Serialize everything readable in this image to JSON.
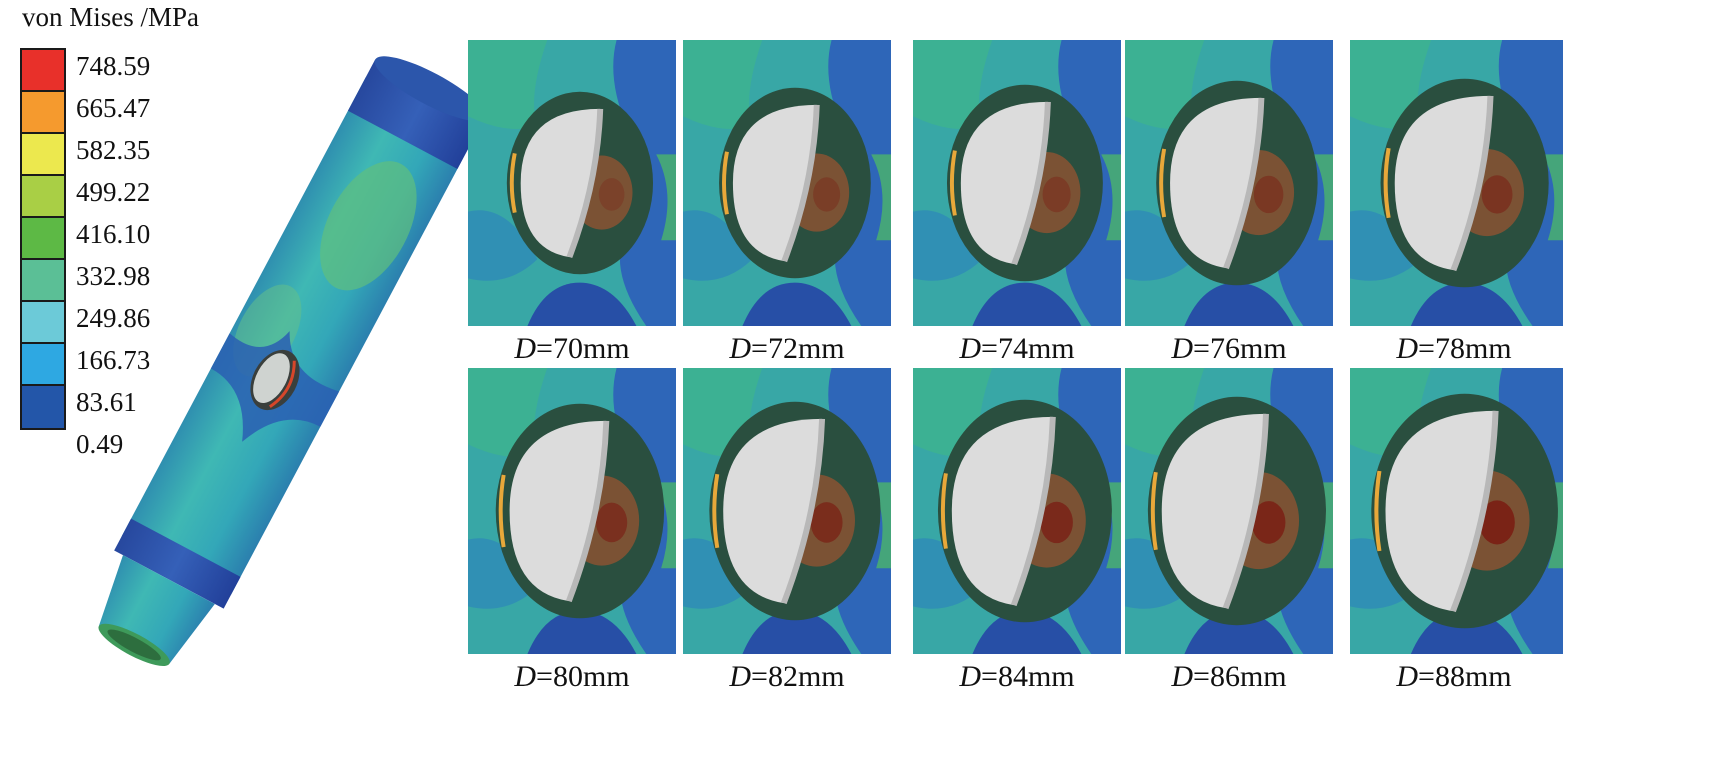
{
  "legend": {
    "title": "von Mises /MPa",
    "levels": [
      {
        "label": "748.59",
        "color": "#e8302a"
      },
      {
        "label": "665.47",
        "color": "#f59a2e"
      },
      {
        "label": "582.35",
        "color": "#ece84e"
      },
      {
        "label": "499.22",
        "color": "#a9cf45"
      },
      {
        "label": "416.10",
        "color": "#5db945"
      },
      {
        "label": "332.98",
        "color": "#5bbf96"
      },
      {
        "label": "249.86",
        "color": "#6ccad8"
      },
      {
        "label": "166.73",
        "color": "#2ea8e2"
      },
      {
        "label": "83.61",
        "color": "#2356a9"
      },
      {
        "label": "0.49",
        "color": null
      }
    ]
  },
  "panels": [
    {
      "variable": "D",
      "value": "=70mm"
    },
    {
      "variable": "D",
      "value": "=72mm"
    },
    {
      "variable": "D",
      "value": "=74mm"
    },
    {
      "variable": "D",
      "value": "=76mm"
    },
    {
      "variable": "D",
      "value": "=78mm"
    },
    {
      "variable": "D",
      "value": "=80mm"
    },
    {
      "variable": "D",
      "value": "=82mm"
    },
    {
      "variable": "D",
      "value": "=84mm"
    },
    {
      "variable": "D",
      "value": "=86mm"
    },
    {
      "variable": "D",
      "value": "=88mm"
    }
  ]
}
